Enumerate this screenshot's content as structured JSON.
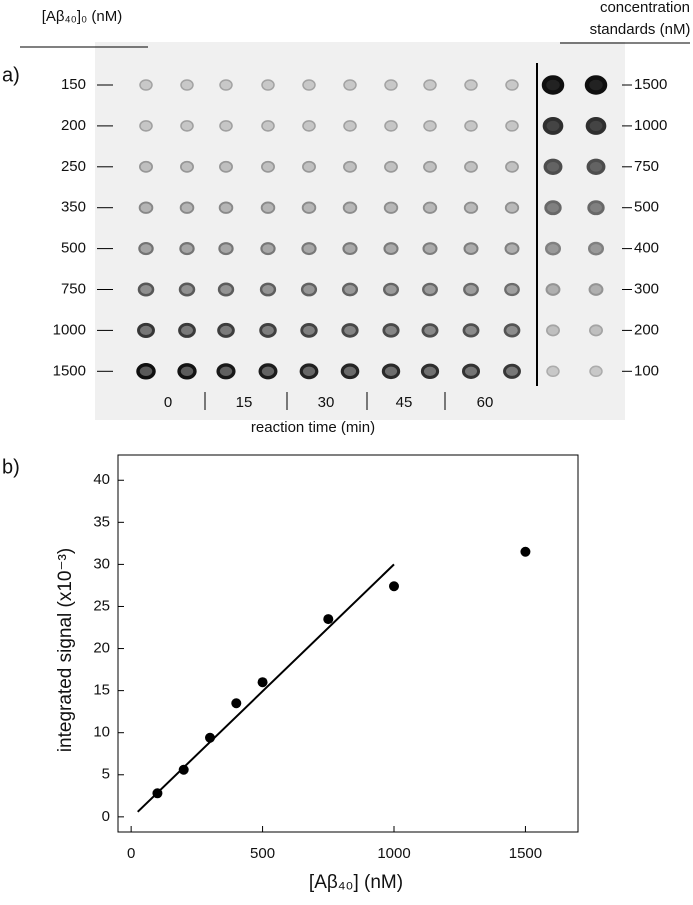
{
  "panel_a": {
    "label": "a)",
    "row_header": "[Aβ₄₀]₀ (nM)",
    "rows": [
      "150",
      "200",
      "250",
      "350",
      "500",
      "750",
      "1000",
      "1500"
    ],
    "standards_header": [
      "concentration",
      "standards (nM)"
    ],
    "standards": [
      "1500",
      "1000",
      "750",
      "500",
      "400",
      "300",
      "200",
      "100"
    ],
    "times": [
      "0",
      "15",
      "30",
      "45",
      "60"
    ],
    "time_label": "reaction time (min)"
  },
  "chart_data": {
    "type": "scatter",
    "label": "b)",
    "xlabel": "[Aβ₄₀] (nM)",
    "ylabel": "integrated signal (x10⁻³)",
    "xlim": [
      -50,
      1700
    ],
    "ylim": [
      -1.8,
      43
    ],
    "xticks": [
      0,
      500,
      1000,
      1500
    ],
    "yticks": [
      0,
      5,
      10,
      15,
      20,
      25,
      30,
      35,
      40
    ],
    "series": [
      {
        "kind": "points",
        "color": "#000000",
        "x": [
          100,
          200,
          300,
          400,
          500,
          750,
          1000,
          1500
        ],
        "values": [
          2.8,
          5.6,
          9.4,
          13.5,
          16,
          23.5,
          27.4,
          31.5
        ]
      },
      {
        "kind": "line",
        "color": "#000000",
        "x": [
          25,
          1000
        ],
        "values": [
          0.6,
          30
        ]
      }
    ]
  }
}
